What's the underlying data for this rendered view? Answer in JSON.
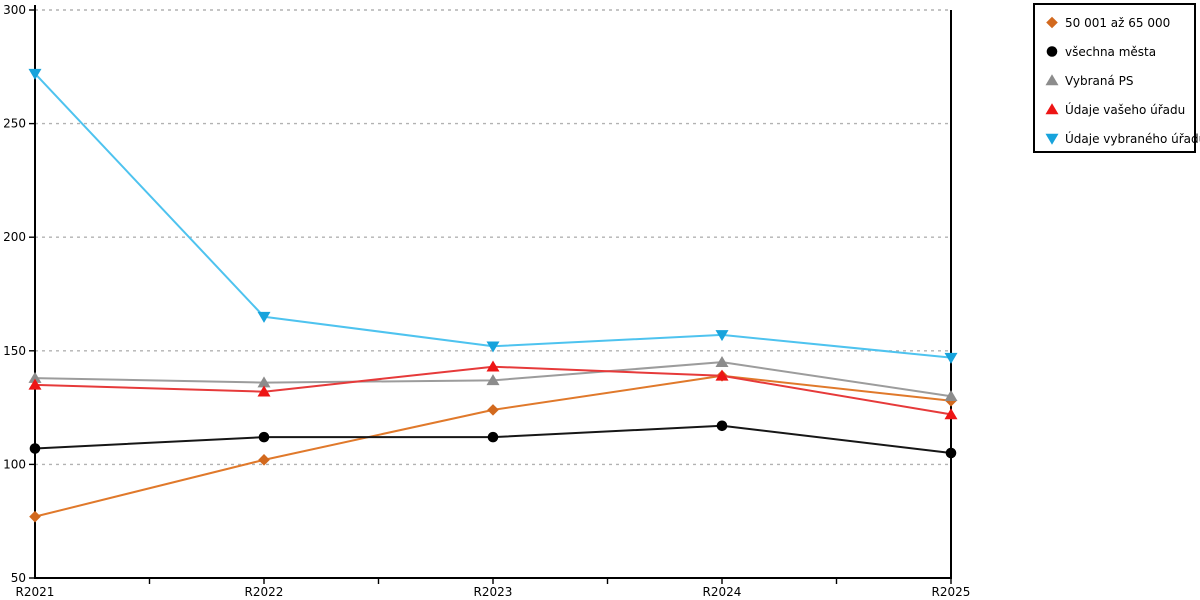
{
  "chart_data": {
    "type": "line",
    "title": "",
    "xlabel": "",
    "ylabel": "",
    "categories": [
      "R2021",
      "R2022",
      "R2023",
      "R2024",
      "R2025"
    ],
    "series": [
      {
        "name": "50 001 až 65 000",
        "marker": "diamond",
        "marker_color": "#d2691e",
        "line_color": "#e0792b",
        "values": [
          77,
          102,
          124,
          139,
          128
        ]
      },
      {
        "name": "všechna města",
        "marker": "circle",
        "marker_color": "#000000",
        "line_color": "#161616",
        "values": [
          107,
          112,
          112,
          117,
          105
        ]
      },
      {
        "name": "Vybraná PS",
        "marker": "triangle-up",
        "marker_color": "#8c8c8c",
        "line_color": "#9c9c9c",
        "values": [
          138,
          136,
          137,
          145,
          130
        ]
      },
      {
        "name": "Údaje vašeho úřadu",
        "marker": "triangle-up",
        "marker_color": "#ed1515",
        "line_color": "#e63a3a",
        "values": [
          135,
          132,
          143,
          139,
          122
        ]
      },
      {
        "name": "Údaje vybraného úřadu",
        "marker": "triangle-down",
        "marker_color": "#17a3dc",
        "line_color": "#4ec3ef",
        "values": [
          272,
          165,
          152,
          157,
          147
        ]
      }
    ],
    "ylim": [
      50,
      300
    ],
    "yticks": [
      50,
      100,
      150,
      200,
      250,
      300
    ],
    "grid": "horizontal-dotted",
    "x_minor_ticks_at_midpoints": true,
    "legend_position": "outside-top-right"
  },
  "colors": {
    "background": "#ffffff",
    "axis": "#000000",
    "grid": "#b2b2b2",
    "legend_border": "#000000",
    "text": "#000000"
  }
}
